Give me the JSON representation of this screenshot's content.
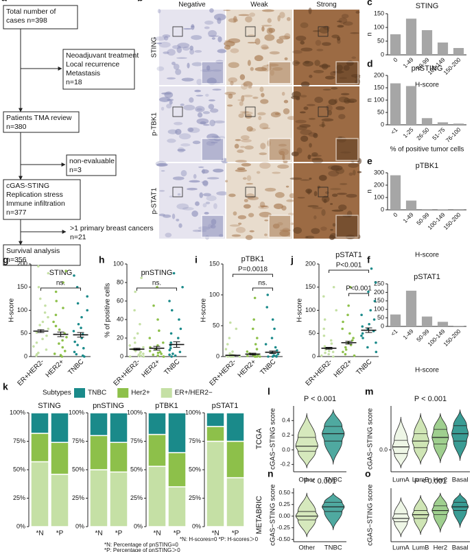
{
  "flowchart": {
    "label": "a",
    "boxes": [
      {
        "lines": [
          "Total number of",
          "cases n=398"
        ]
      },
      {
        "lines": [
          "Neoadjuvant treatment",
          "Local recurrence",
          "Metastasis",
          "n=18"
        ]
      },
      {
        "lines": [
          "Patients TMA review",
          "n=380"
        ]
      },
      {
        "lines": [
          "non-evaluable",
          "n=3"
        ]
      },
      {
        "lines": [
          "cGAS-STING",
          "Replication stress",
          "Immune infiltration",
          "n=377"
        ]
      },
      {
        "lines": [
          ">1 primary breast cancers",
          "n=21"
        ]
      },
      {
        "lines": [
          "Survival analysis",
          "n=356"
        ]
      }
    ]
  },
  "ihc": {
    "label": "b",
    "columns": [
      "Negative",
      "Weak",
      "Strong"
    ],
    "rows": [
      "STING",
      "p-TBK1",
      "p-STAT1"
    ]
  },
  "chart_data": [
    {
      "type": "bar",
      "label": "c",
      "title": "STING",
      "categories": [
        "0",
        "1-49",
        "50-99",
        "100-149",
        "150-200"
      ],
      "values": [
        75,
        132,
        90,
        45,
        25
      ],
      "color": "#a6a6a6",
      "ylim": [
        0,
        150
      ],
      "yticks": [
        0,
        50,
        100,
        150
      ],
      "ylabel": "n",
      "xlabel": "H-score"
    },
    {
      "type": "bar",
      "label": "d",
      "title": "pnSTING",
      "categories": [
        "<1",
        "1-25",
        "26-50",
        "51-75",
        "76-100"
      ],
      "values": [
        168,
        157,
        27,
        10,
        5
      ],
      "color": "#a6a6a6",
      "ylim": [
        0,
        200
      ],
      "yticks": [
        0,
        50,
        100,
        150,
        200
      ],
      "ylabel": "n",
      "xlabel": "% of positive tumor cells"
    },
    {
      "type": "bar",
      "label": "e",
      "title": "pTBK1",
      "categories": [
        "0",
        "1-49",
        "50-99",
        "100-149",
        "150-200"
      ],
      "values": [
        280,
        75,
        5,
        2,
        1
      ],
      "color": "#a6a6a6",
      "ylim": [
        0,
        300
      ],
      "yticks": [
        0,
        100,
        200,
        300
      ],
      "ylabel": "n",
      "xlabel": "H-score"
    },
    {
      "type": "bar",
      "label": "f",
      "title": "pSTAT1",
      "categories": [
        "<1",
        "1-49",
        "50-99",
        "100-149",
        "150-200"
      ],
      "values": [
        70,
        210,
        58,
        27,
        3
      ],
      "color": "#a6a6a6",
      "ylim": [
        0,
        250
      ],
      "yticks": [
        0,
        50,
        100,
        150,
        200,
        250
      ],
      "xlabel": "H-score"
    },
    {
      "type": "strip",
      "label": "g",
      "title": "STING",
      "ylabel": "H-score",
      "ylim": [
        0,
        200
      ],
      "yticks": [
        0,
        50,
        100,
        150,
        200
      ],
      "annotations": [
        "ns."
      ],
      "series": [
        {
          "name": "ER+HER2-",
          "color": "#c5e0a5",
          "mean": 55,
          "sem": 3,
          "values": [
            2,
            5,
            8,
            15,
            22,
            30,
            38,
            45,
            52,
            60,
            68,
            75,
            85,
            95,
            110,
            125,
            150,
            180,
            195
          ]
        },
        {
          "name": "HER2+",
          "color": "#8dc04a",
          "mean": 48,
          "sem": 5,
          "values": [
            0,
            3,
            6,
            12,
            20,
            28,
            35,
            42,
            50,
            58,
            66,
            75,
            90,
            105,
            120,
            140,
            160,
            185
          ]
        },
        {
          "name": "TNBC",
          "color": "#1a8a8a",
          "mean": 47,
          "sem": 5,
          "values": [
            0,
            2,
            5,
            10,
            18,
            25,
            32,
            40,
            48,
            55,
            62,
            70,
            85,
            100,
            115,
            130,
            150,
            175
          ]
        }
      ]
    },
    {
      "type": "strip",
      "label": "h",
      "title": "pnSTING",
      "ylabel": "% of positive cells",
      "ylim": [
        0,
        100
      ],
      "yticks": [
        0,
        20,
        40,
        60,
        80,
        100
      ],
      "annotations": [
        "ns."
      ],
      "series": [
        {
          "name": "ER+HER2-",
          "color": "#c5e0a5",
          "mean": 8,
          "sem": 1,
          "values": [
            0,
            0,
            1,
            1,
            2,
            3,
            4,
            5,
            6,
            8,
            10,
            12,
            15,
            20,
            25,
            35,
            50,
            70,
            85
          ]
        },
        {
          "name": "HER2+",
          "color": "#8dc04a",
          "mean": 9,
          "sem": 2,
          "values": [
            0,
            0,
            1,
            2,
            3,
            4,
            5,
            6,
            8,
            10,
            12,
            15,
            20,
            28,
            40,
            55,
            75
          ]
        },
        {
          "name": "TNBC",
          "color": "#1a8a8a",
          "mean": 13,
          "sem": 3,
          "values": [
            0,
            1,
            2,
            3,
            5,
            7,
            9,
            12,
            15,
            20,
            25,
            30,
            40,
            50,
            60,
            75,
            90
          ]
        }
      ]
    },
    {
      "type": "strip",
      "label": "i",
      "title": "pTBK1",
      "ylabel": "H-score",
      "ylim": [
        0,
        150
      ],
      "yticks": [
        0,
        50,
        100,
        150
      ],
      "annotations": [
        "P=0.0018",
        "ns."
      ],
      "series": [
        {
          "name": "ER+HER2-",
          "color": "#c5e0a5",
          "mean": 2,
          "sem": 0.5,
          "values": [
            0,
            0,
            0,
            0,
            0,
            1,
            1,
            2,
            3,
            5,
            8,
            12,
            20,
            30,
            45,
            55
          ]
        },
        {
          "name": "HER2+",
          "color": "#8dc04a",
          "mean": 4,
          "sem": 1.5,
          "values": [
            0,
            0,
            0,
            0,
            1,
            2,
            3,
            5,
            8,
            12,
            20,
            30,
            45,
            60,
            95
          ]
        },
        {
          "name": "TNBC",
          "color": "#1a8a8a",
          "mean": 7,
          "sem": 2,
          "values": [
            0,
            0,
            0,
            1,
            2,
            4,
            6,
            10,
            15,
            20,
            30,
            45,
            60,
            80,
            100
          ]
        }
      ]
    },
    {
      "type": "strip",
      "label": "j",
      "title": "pSTAT1",
      "ylabel": "H-score",
      "ylim": [
        0,
        200
      ],
      "yticks": [
        0,
        50,
        100,
        150,
        200
      ],
      "annotations": [
        "P<0.001",
        "P<0.001"
      ],
      "series": [
        {
          "name": "ER+HER2-",
          "color": "#c5e0a5",
          "mean": 18,
          "sem": 2,
          "values": [
            0,
            2,
            5,
            8,
            10,
            12,
            15,
            18,
            22,
            28,
            35,
            45,
            60,
            80,
            100,
            130,
            150
          ]
        },
        {
          "name": "HER2+",
          "color": "#8dc04a",
          "mean": 30,
          "sem": 3,
          "values": [
            2,
            5,
            10,
            15,
            20,
            25,
            30,
            35,
            40,
            50,
            60,
            75,
            90,
            110,
            150
          ]
        },
        {
          "name": "TNBC",
          "color": "#1a8a8a",
          "mean": 57,
          "sem": 5,
          "values": [
            10,
            20,
            30,
            40,
            45,
            50,
            55,
            60,
            65,
            70,
            80,
            90,
            100,
            120,
            140,
            160,
            190
          ]
        }
      ]
    },
    {
      "type": "stacked",
      "label": "k",
      "legend_title": "Subtypes",
      "ylim": [
        0,
        100
      ],
      "yticks": [
        {
          "value": 0,
          "label": "0%"
        },
        {
          "value": 25,
          "label": "25%"
        },
        {
          "value": 50,
          "label": "50%"
        },
        {
          "value": 75,
          "label": "75%"
        },
        {
          "value": 100,
          "label": "100%"
        }
      ],
      "series": [
        {
          "name": "TNBC",
          "color": "#1a8a8a"
        },
        {
          "name": "Her2+",
          "color": "#8dc04a"
        },
        {
          "name": "ER+/HER2−",
          "color": "#c5e0a5"
        }
      ],
      "panels": [
        {
          "title": "STING",
          "categories": [
            "*N",
            "*P"
          ],
          "values": [
            [
              18,
              26
            ],
            [
              25,
              28
            ],
            [
              57,
              46
            ]
          ]
        },
        {
          "title": "pnSTING",
          "categories": [
            "*N",
            "*P"
          ],
          "values": [
            [
              20,
              26
            ],
            [
              30,
              26
            ],
            [
              50,
              48
            ]
          ]
        },
        {
          "title": "pTBK1",
          "categories": [
            "*N",
            "*P"
          ],
          "values": [
            [
              19,
              35
            ],
            [
              28,
              30
            ],
            [
              53,
              35
            ]
          ]
        },
        {
          "title": "pSTAT1",
          "categories": [
            "*N",
            "*P"
          ],
          "values": [
            [
              12,
              25
            ],
            [
              13,
              32
            ],
            [
              75,
              43
            ]
          ]
        }
      ],
      "notes": [
        "*N: H-scores=0  *P: H-scores＞0",
        "*N: Percentage of pnSTING=0",
        "*P: Percentage of pnSTING＞0"
      ]
    },
    {
      "type": "violin",
      "label": "l",
      "title": "P < 0.001",
      "side_label": "TCGA",
      "ylabel": "cGAS−STING score",
      "ylim": [
        -0.3,
        0.6
      ],
      "yticks": [
        -0.2,
        {
          "value": 0,
          "label": "0.0"
        },
        0.2,
        0.4
      ],
      "series": [
        {
          "name": "Other",
          "color": "#d6e9bd",
          "quartiles": [
            -0.25,
            -0.02,
            0.05,
            0.17,
            0.5
          ]
        },
        {
          "name": "TNBC",
          "color": "#4fa9a0",
          "quartiles": [
            -0.2,
            0.12,
            0.22,
            0.32,
            0.55
          ]
        }
      ]
    },
    {
      "type": "violin",
      "label": "m",
      "title": "P < 0.001",
      "ylabel": "cGAS−STING score",
      "ylim": [
        -0.3,
        0.6
      ],
      "yticks": [
        {
          "value": 0,
          "label": "0.0"
        }
      ],
      "series": [
        {
          "name": "LumA",
          "color": "#eef6e6",
          "quartiles": [
            -0.25,
            -0.05,
            0.04,
            0.13,
            0.45
          ]
        },
        {
          "name": "LumB",
          "color": "#cfe5b5",
          "quartiles": [
            -0.2,
            0.03,
            0.12,
            0.22,
            0.5
          ]
        },
        {
          "name": "Her2",
          "color": "#9fcf8f",
          "quartiles": [
            -0.18,
            0.08,
            0.17,
            0.28,
            0.5
          ]
        },
        {
          "name": "Basal",
          "color": "#3a9c94",
          "quartiles": [
            -0.15,
            0.12,
            0.22,
            0.33,
            0.55
          ]
        }
      ]
    },
    {
      "type": "violin",
      "label": "n",
      "title": "P < 0.001",
      "side_label": "METABRIC",
      "ylabel": "cGAS−STING score",
      "ylim": [
        -0.55,
        0.6
      ],
      "yticks": [
        {
          "value": -0.5,
          "label": "-0.50"
        },
        {
          "value": -0.25,
          "label": "-0.25"
        },
        {
          "value": 0,
          "label": "0.00"
        },
        {
          "value": 0.25,
          "label": "0.25"
        },
        {
          "value": 0.5,
          "label": "0.50"
        }
      ],
      "series": [
        {
          "name": "Other",
          "color": "#d6e9bd",
          "quartiles": [
            -0.45,
            -0.08,
            0.0,
            0.1,
            0.5
          ]
        },
        {
          "name": "TNBC",
          "color": "#4fa9a0",
          "quartiles": [
            -0.3,
            0.1,
            0.2,
            0.3,
            0.5
          ]
        }
      ]
    },
    {
      "type": "violin",
      "label": "o",
      "title": "P < 0.001",
      "ylabel": "cGAS−STING score",
      "ylim": [
        -0.55,
        0.6
      ],
      "series": [
        {
          "name": "LumA",
          "color": "#eef6e6",
          "quartiles": [
            -0.45,
            -0.12,
            -0.05,
            0.05,
            0.4
          ]
        },
        {
          "name": "LumB",
          "color": "#cfe5b5",
          "quartiles": [
            -0.4,
            -0.05,
            0.03,
            0.12,
            0.45
          ]
        },
        {
          "name": "Her2",
          "color": "#9fcf8f",
          "quartiles": [
            -0.35,
            0.03,
            0.12,
            0.22,
            0.5
          ]
        },
        {
          "name": "Basal",
          "color": "#3a9c94",
          "quartiles": [
            -0.25,
            0.12,
            0.2,
            0.3,
            0.5
          ]
        }
      ]
    }
  ]
}
